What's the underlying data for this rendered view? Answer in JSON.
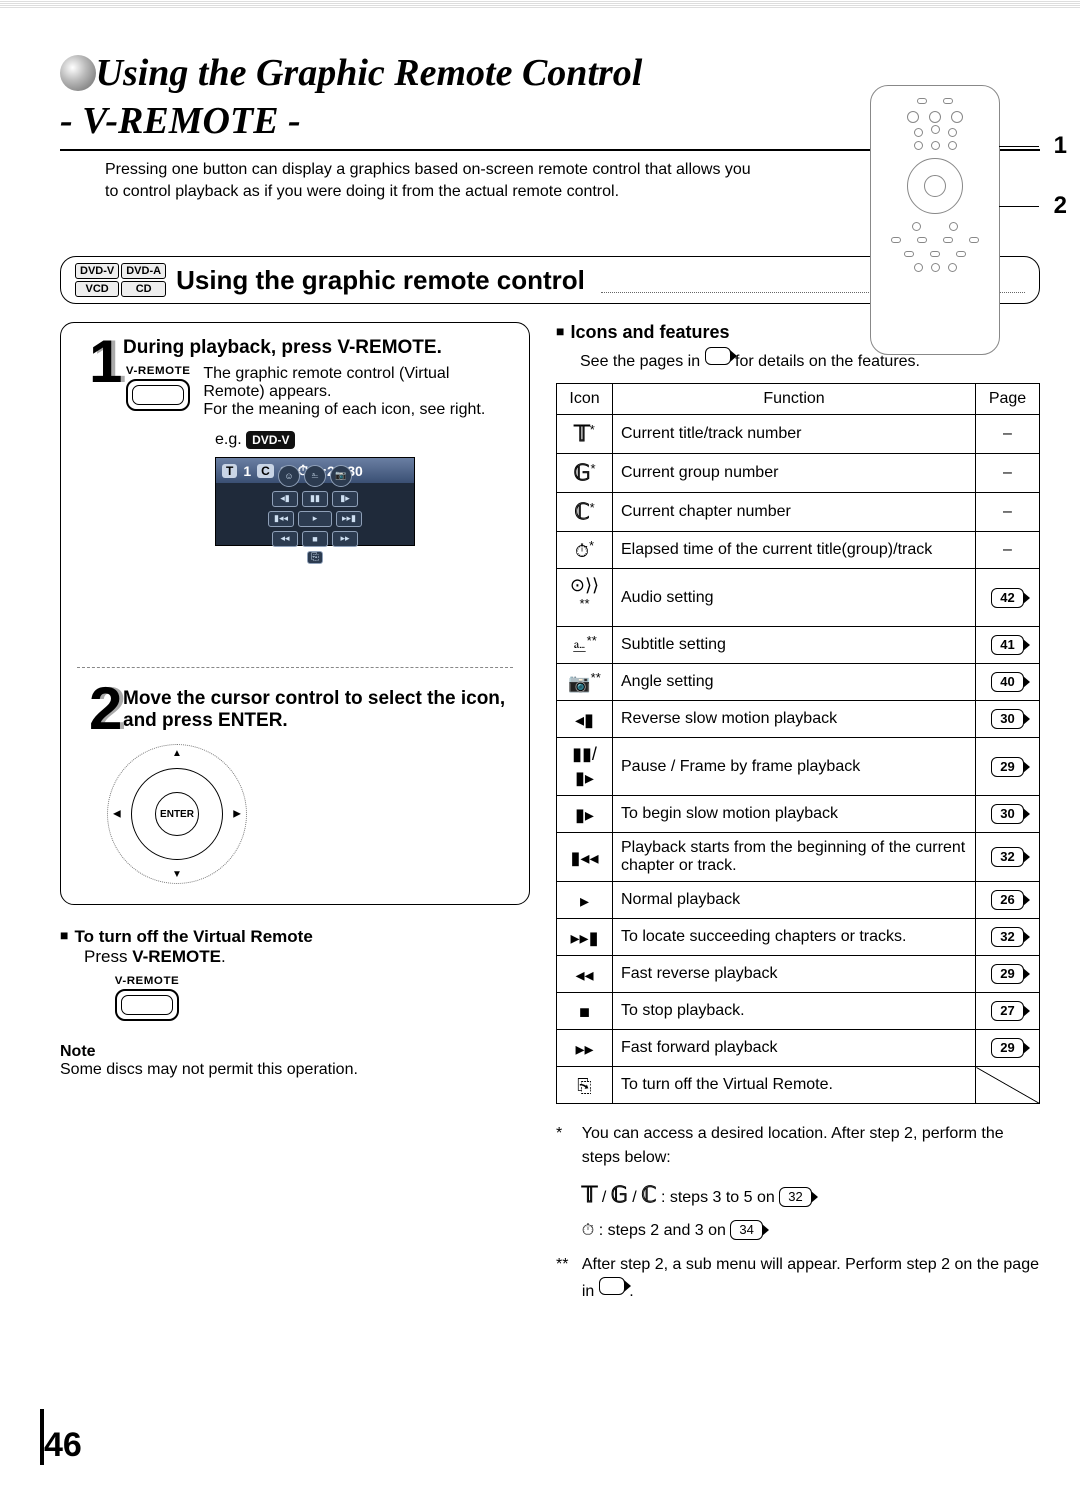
{
  "page_number": "46",
  "title": {
    "line1": "Using the Graphic Remote Control",
    "line2": "- V-REMOTE -"
  },
  "intro": "Pressing one button can display a graphics based on-screen remote control that allows you to control playback as if you were doing it from the actual remote control.",
  "remote_labels": {
    "n1": "1",
    "n2": "2"
  },
  "disk_badges": [
    "DVD-V",
    "DVD-A",
    "VCD",
    "CD"
  ],
  "section_title": "Using the graphic remote control",
  "steps": {
    "s1": {
      "num": "1",
      "title": "During playback, press V-REMOTE.",
      "btn_label": "V-REMOTE",
      "body": "The graphic remote control (Virtual Remote) appears.\nFor the meaning of each icon, see right.",
      "eg_label": "e.g.",
      "eg_badge": "DVD-V",
      "osd": {
        "t_badge": "T",
        "t_num": "1",
        "c_badge": "C",
        "c_num": "1",
        "clock": "1:25:30"
      }
    },
    "s2": {
      "num": "2",
      "title": "Move the cursor control to select the icon, and press ENTER.",
      "wheel_label": "ENTER"
    }
  },
  "turn_off": {
    "heading": "To turn off the Virtual Remote",
    "body": "Press ",
    "btn_word": "V-REMOTE",
    "btn_label": "V-REMOTE"
  },
  "note": {
    "label": "Note",
    "body": "Some discs may not permit this operation."
  },
  "icons_section": {
    "heading": "Icons and features",
    "sub_a": "See the pages in ",
    "sub_b": " for details on the features.",
    "headers": {
      "icon": "Icon",
      "function": "Function",
      "page": "Page"
    },
    "rows": [
      {
        "icon": "T",
        "icon_class": "letter",
        "star": "*",
        "func": "Current title/track number",
        "page": "–"
      },
      {
        "icon": "G",
        "icon_class": "letter",
        "star": "*",
        "func": "Current group number",
        "page": "–"
      },
      {
        "icon": "C",
        "icon_class": "letter",
        "star": "*",
        "func": "Current chapter number",
        "page": "–"
      },
      {
        "icon": "⏱",
        "icon_class": "",
        "star": "*",
        "func": "Elapsed time of the current title(group)/track",
        "page": "–"
      },
      {
        "icon": "⊙⟩⟩",
        "icon_class": "",
        "star": "**",
        "func": "Audio setting",
        "page": "42"
      },
      {
        "icon": "⎁",
        "icon_class": "",
        "star": "**",
        "func": "Subtitle setting",
        "page": "41"
      },
      {
        "icon": "📷",
        "icon_class": "",
        "star": "**",
        "func": "Angle setting",
        "page": "40"
      },
      {
        "icon": "◂▮",
        "icon_class": "",
        "star": "",
        "func": "Reverse slow motion playback",
        "page": "30"
      },
      {
        "icon": "▮▮/▮▸",
        "icon_class": "",
        "star": "",
        "func": "Pause / Frame by frame playback",
        "page": "29"
      },
      {
        "icon": "▮▸",
        "icon_class": "",
        "star": "",
        "func": "To begin slow motion playback",
        "page": "30"
      },
      {
        "icon": "▮◂◂",
        "icon_class": "",
        "star": "",
        "func": "Playback starts from the beginning of the current chapter or track.",
        "page": "32"
      },
      {
        "icon": "▸",
        "icon_class": "",
        "star": "",
        "func": "Normal playback",
        "page": "26"
      },
      {
        "icon": "▸▸▮",
        "icon_class": "",
        "star": "",
        "func": "To locate succeeding chapters or tracks.",
        "page": "32"
      },
      {
        "icon": "◂◂",
        "icon_class": "",
        "star": "",
        "func": "Fast reverse playback",
        "page": "29"
      },
      {
        "icon": "■",
        "icon_class": "",
        "star": "",
        "func": "To stop playback.",
        "page": "27"
      },
      {
        "icon": "▸▸",
        "icon_class": "",
        "star": "",
        "func": "Fast forward playback",
        "page": "29"
      },
      {
        "icon": "⎘",
        "icon_class": "",
        "star": "",
        "func": "To turn off the Virtual Remote.",
        "page": "slash"
      }
    ]
  },
  "footnotes": {
    "f1_a": "You can access a desired location. After step 2, perform the steps below:",
    "f1_line1_a": " / ",
    "f1_line1_b": " / ",
    "f1_line1_c": " : steps 3 to 5 on ",
    "f1_page1": "32",
    "f1_line2_a": " : steps 2 and 3 on ",
    "f1_page2": "34",
    "f2_a": "After step 2, a sub menu will appear. Perform step 2 on the page in ",
    "f2_b": "."
  }
}
